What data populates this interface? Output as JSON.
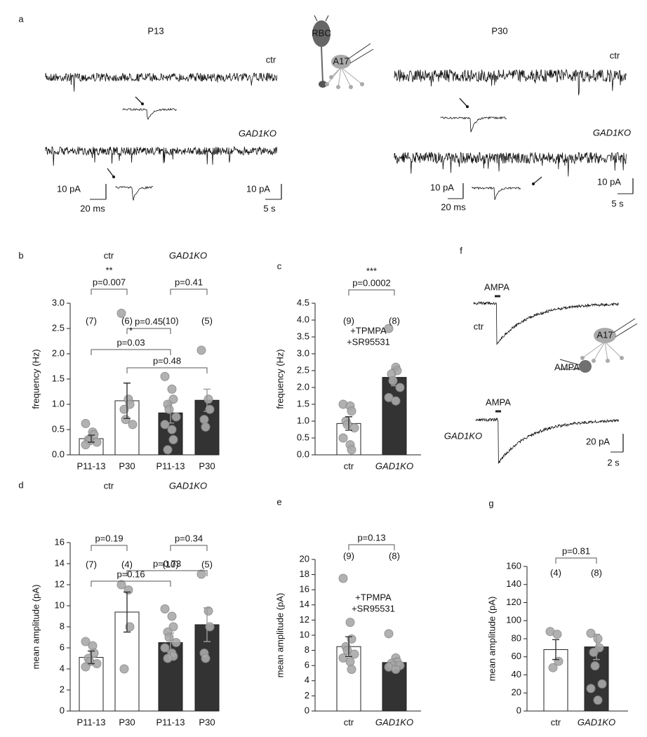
{
  "figure": {
    "a": {
      "letter": "a",
      "left_title": "P13",
      "right_title": "P30",
      "left_ctr": "ctr",
      "left_ko": "GAD1KO",
      "right_ctr": "ctr",
      "right_ko": "GAD1KO",
      "left_inset_amp": "10 pA",
      "left_inset_time": "20 ms",
      "left_trace_amp": "10 pA",
      "left_trace_time": "5 s",
      "right_inset_amp": "10 pA",
      "right_inset_time": "20 ms",
      "right_trace_amp": "10 pA",
      "right_trace_time": "5 s",
      "cell_rbc": "RBC",
      "cell_a17": "A17"
    },
    "f": {
      "letter": "f",
      "stim_top": "AMPA",
      "ctr": "ctr",
      "stim_bottom": "AMPA",
      "ko": "GAD1KO",
      "amp_scale": "20 pA",
      "time_scale": "2 s",
      "cell_a17": "A17",
      "puff": "AMPA"
    }
  },
  "chart_data": [
    {
      "type": "bar",
      "panel": "b",
      "ylabel": "frequency (Hz)",
      "groups": [
        "ctr",
        "GAD1KO"
      ],
      "categories": [
        "P11-13",
        "P30",
        "P11-13",
        "P30"
      ],
      "values": [
        0.32,
        1.07,
        0.83,
        1.08
      ],
      "errors": [
        0.07,
        0.35,
        0.2,
        0.22
      ],
      "bar_colors": [
        "#ffffff",
        "#ffffff",
        "#333333",
        "#333333"
      ],
      "points": [
        [
          0.62,
          0.45,
          0.4,
          0.3,
          0.28,
          0.25,
          0.2
        ],
        [
          2.8,
          1.1,
          1.0,
          0.9,
          0.7,
          0.6
        ],
        [
          1.55,
          1.3,
          1.1,
          1.0,
          0.9,
          0.75,
          0.6,
          0.5,
          0.3,
          0.1
        ],
        [
          2.07,
          1.1,
          0.9,
          0.7,
          0.55
        ]
      ],
      "n_labels": [
        "(7)",
        "(6)",
        "(10)",
        "(5)"
      ],
      "brackets": [
        {
          "from": 0,
          "to": 1,
          "label": "p=0.007",
          "stars": "**"
        },
        {
          "from": 2,
          "to": 3,
          "label": "p=0.41"
        },
        {
          "from": 1,
          "to": 2,
          "label": "p=0.45"
        },
        {
          "from": 0,
          "to": 2,
          "label": "p=0.03",
          "stars": "*"
        },
        {
          "from": 1,
          "to": 3,
          "label": "p=0.48"
        }
      ],
      "ylim": [
        0,
        3
      ],
      "yticks": [
        {
          "value": 0,
          "label": "0.0"
        },
        {
          "value": 0.5,
          "label": "0.5"
        },
        {
          "value": 1,
          "label": "1.0"
        },
        {
          "value": 1.5,
          "label": "1.5"
        },
        {
          "value": 2,
          "label": "2.0"
        },
        {
          "value": 2.5,
          "label": "2.5"
        },
        {
          "value": 3,
          "label": "3.0"
        }
      ]
    },
    {
      "type": "bar",
      "panel": "c",
      "ylabel": "frequency (Hz)",
      "annotation": [
        "+TPMPA",
        "+SR95531"
      ],
      "categories": [
        "ctr",
        "GAD1KO"
      ],
      "values": [
        0.93,
        2.3
      ],
      "errors": [
        0.2,
        0.25
      ],
      "bar_colors": [
        "#ffffff",
        "#333333"
      ],
      "points": [
        [
          1.5,
          1.45,
          1.3,
          1.0,
          0.9,
          0.8,
          0.5,
          0.3,
          0.15
        ],
        [
          3.75,
          2.6,
          2.5,
          2.4,
          2.2,
          2.0,
          1.7,
          1.6
        ]
      ],
      "n_labels": [
        "(9)",
        "(8)"
      ],
      "brackets": [
        {
          "from": 0,
          "to": 1,
          "label": "p=0.0002",
          "stars": "***"
        }
      ],
      "ylim": [
        0,
        4.5
      ],
      "yticks": [
        {
          "value": 0,
          "label": "0.0"
        },
        {
          "value": 0.5,
          "label": "0.5"
        },
        {
          "value": 1,
          "label": "1.0"
        },
        {
          "value": 1.5,
          "label": "1.5"
        },
        {
          "value": 2,
          "label": "2.0"
        },
        {
          "value": 2.5,
          "label": "2.5"
        },
        {
          "value": 3,
          "label": "3.0"
        },
        {
          "value": 3.5,
          "label": "3.5"
        },
        {
          "value": 4,
          "label": "4.0"
        },
        {
          "value": 4.5,
          "label": "4.5"
        }
      ]
    },
    {
      "type": "bar",
      "panel": "d",
      "ylabel": "mean amplitude (pA)",
      "groups": [
        "ctr",
        "GAD1KO"
      ],
      "categories": [
        "P11-13",
        "P30",
        "P11-13",
        "P30"
      ],
      "values": [
        5.1,
        9.4,
        6.5,
        8.2
      ],
      "errors": [
        0.6,
        1.9,
        0.9,
        1.6
      ],
      "bar_colors": [
        "#ffffff",
        "#ffffff",
        "#333333",
        "#333333"
      ],
      "points": [
        [
          6.6,
          6.2,
          5.5,
          5.0,
          4.7,
          4.5,
          4.2
        ],
        [
          12,
          11.5,
          8,
          4
        ],
        [
          9.7,
          9,
          8,
          7.5,
          7,
          6.5,
          6,
          5.5,
          5.2,
          5
        ],
        [
          13,
          9.5,
          8,
          5.5,
          5
        ]
      ],
      "n_labels": [
        "(7)",
        "(4)",
        "(10)",
        "(5)"
      ],
      "brackets": [
        {
          "from": 0,
          "to": 1,
          "label": "p=0.19"
        },
        {
          "from": 2,
          "to": 3,
          "label": "p=0.34"
        },
        {
          "from": 1,
          "to": 3,
          "label": "p=0.73"
        },
        {
          "from": 0,
          "to": 2,
          "label": "p=0.16"
        }
      ],
      "ylim": [
        0,
        16
      ],
      "yticks": [
        0,
        2,
        4,
        6,
        8,
        10,
        12,
        14,
        16
      ]
    },
    {
      "type": "bar",
      "panel": "e",
      "ylabel": "mean amplitude (pA)",
      "annotation": [
        "+TPMPA",
        "+SR95531"
      ],
      "categories": [
        "ctr",
        "GAD1KO"
      ],
      "values": [
        8.5,
        6.4
      ],
      "errors": [
        1.3,
        0.5
      ],
      "bar_colors": [
        "#ffffff",
        "#333333"
      ],
      "points": [
        [
          17.5,
          11.7,
          9.5,
          8.5,
          8,
          7.5,
          7,
          6.5,
          5.5
        ],
        [
          10.2,
          7,
          6.5,
          6.3,
          6,
          6,
          5.8,
          5.5
        ]
      ],
      "n_labels": [
        "(9)",
        "(8)"
      ],
      "brackets": [
        {
          "from": 0,
          "to": 1,
          "label": "p=0.13"
        }
      ],
      "ylim": [
        0,
        20
      ],
      "yticks": [
        0,
        2,
        4,
        6,
        8,
        10,
        12,
        14,
        16,
        18,
        20
      ]
    },
    {
      "type": "bar",
      "panel": "g",
      "ylabel": "mean amplitude (pA)",
      "categories": [
        "ctr",
        "GAD1KO"
      ],
      "values": [
        68,
        71
      ],
      "errors": [
        11,
        14
      ],
      "bar_colors": [
        "#ffffff",
        "#333333"
      ],
      "points": [
        [
          88,
          85,
          55,
          48
        ],
        [
          86,
          80,
          70,
          65,
          50,
          30,
          25,
          12
        ]
      ],
      "n_labels": [
        "(4)",
        "(8)"
      ],
      "brackets": [
        {
          "from": 0,
          "to": 1,
          "label": "p=0.81"
        }
      ],
      "ylim": [
        0,
        160
      ],
      "yticks": [
        0,
        20,
        40,
        60,
        80,
        100,
        120,
        140,
        160
      ]
    }
  ]
}
